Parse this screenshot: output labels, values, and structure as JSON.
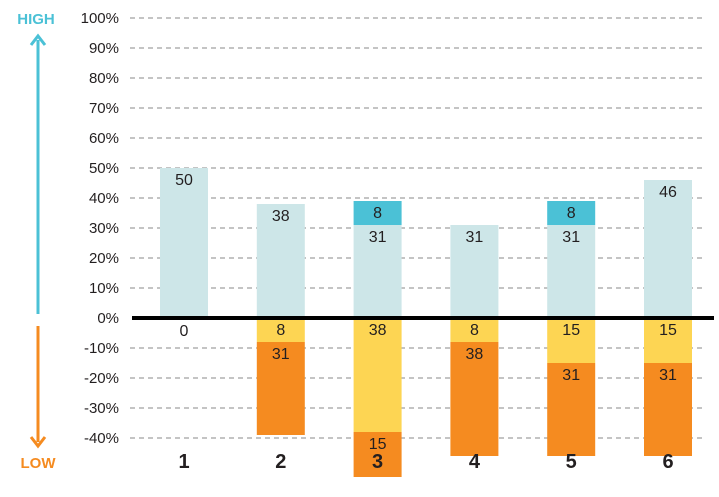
{
  "chart_data": {
    "type": "bar",
    "stacked": true,
    "categories": [
      "1",
      "2",
      "3",
      "4",
      "5",
      "6"
    ],
    "y_tick_labels": [
      "100%",
      "90%",
      "80%",
      "70%",
      "60%",
      "50%",
      "40%",
      "30%",
      "20%",
      "10%",
      "0%",
      "-10%",
      "-20%",
      "-30%",
      "-40%"
    ],
    "ylim": [
      -55,
      100
    ],
    "grid": true,
    "high_label": "HIGH",
    "low_label": "LOW",
    "series": [
      {
        "key": "positive_light",
        "color": "#cde6e8",
        "values": [
          50,
          38,
          31,
          31,
          31,
          46
        ]
      },
      {
        "key": "positive_dark",
        "color": "#4bc1d6",
        "values": [
          0,
          0,
          8,
          0,
          8,
          0
        ]
      },
      {
        "key": "negative_light",
        "color": "#fdd553",
        "values": [
          0,
          8,
          38,
          8,
          15,
          15
        ]
      },
      {
        "key": "negative_dark",
        "color": "#f58b20",
        "values": [
          0,
          31,
          15,
          38,
          31,
          31
        ]
      }
    ],
    "data_labels": [
      [
        "50",
        "",
        "",
        "0"
      ],
      [
        "38",
        "",
        "8",
        "31"
      ],
      [
        "31",
        "8",
        "38",
        "15"
      ],
      [
        "31",
        "",
        "8",
        "38"
      ],
      [
        "31",
        "8",
        "15",
        "31"
      ],
      [
        "46",
        "",
        "15",
        "31"
      ]
    ],
    "colors": {
      "high_arrow": "#4bc1d6",
      "low_arrow": "#f58b20",
      "grid": "#8a8a8a",
      "zero_line": "#000000"
    }
  }
}
